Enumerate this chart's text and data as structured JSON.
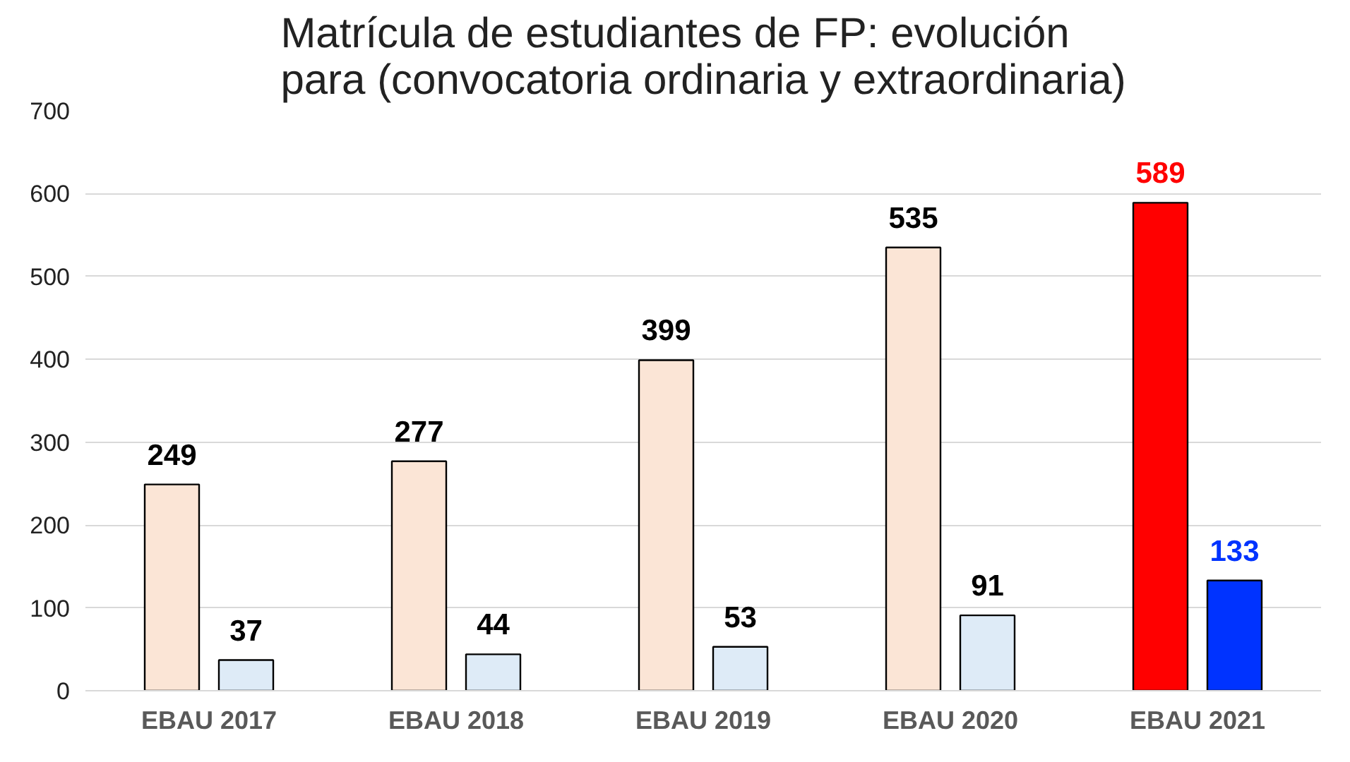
{
  "chart_data": {
    "type": "bar",
    "title": "Matrícula de estudiantes de FP: evolución para (convocatoria ordinaria y extraordinaria)",
    "categories": [
      "EBAU 2017",
      "EBAU 2018",
      "EBAU 2019",
      "EBAU 2020",
      "EBAU 2021"
    ],
    "series": [
      {
        "colors": [
          "#fbe5d6",
          "#fbe5d6",
          "#fbe5d6",
          "#fbe5d6",
          "#ff0000"
        ],
        "values": [
          249,
          277,
          399,
          535,
          589
        ]
      },
      {
        "colors": [
          "#deebf7",
          "#deebf7",
          "#deebf7",
          "#deebf7",
          "#0033ff"
        ],
        "values": [
          37,
          44,
          53,
          91,
          133
        ]
      }
    ],
    "ylim": [
      0,
      700
    ],
    "yticks": [
      0,
      100,
      200,
      300,
      400,
      500,
      600,
      700
    ],
    "grid": "y",
    "data_labels": true
  }
}
